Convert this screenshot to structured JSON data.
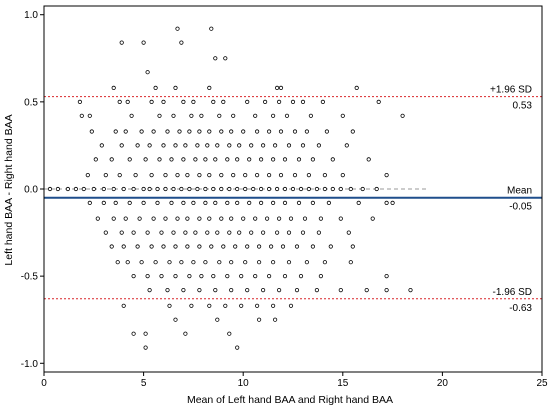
{
  "chart_data": {
    "type": "scatter",
    "title": "",
    "xlabel": "Mean of Left hand BAA and Right hand BAA",
    "ylabel": "Left hand BAA - Right hand BAA",
    "xlim": [
      0,
      25
    ],
    "ylim": [
      -1.05,
      1.05
    ],
    "x_ticks": [
      0,
      5,
      10,
      15,
      20,
      25
    ],
    "y_ticks": [
      -1.0,
      -0.5,
      0.0,
      0.5,
      1.0
    ],
    "x_tick_labels": [
      "0",
      "5",
      "10",
      "15",
      "20",
      "25"
    ],
    "y_tick_labels": [
      "-1.0",
      "-0.5",
      "0.0",
      "0.5",
      "1.0"
    ],
    "grid": false,
    "reference_lines": [
      {
        "name": "upper-loa",
        "y": 0.53,
        "label_top": "+1.96 SD",
        "label_bottom": "0.53",
        "style": "dotted",
        "color": "#d9252a"
      },
      {
        "name": "mean",
        "y": -0.05,
        "label_top": "Mean",
        "label_bottom": "-0.05",
        "style": "solid",
        "color": "#1f4e8c"
      },
      {
        "name": "lower-loa",
        "y": -0.63,
        "label_top": "-1.96 SD",
        "label_bottom": "-0.63",
        "style": "dotted",
        "color": "#d9252a"
      },
      {
        "name": "zero",
        "y": 0.0,
        "label_top": "",
        "label_bottom": "",
        "style": "dashed",
        "color": "#777777"
      }
    ],
    "points": [
      [
        6.7,
        0.92
      ],
      [
        8.4,
        0.92
      ],
      [
        3.9,
        0.84
      ],
      [
        5.0,
        0.84
      ],
      [
        6.9,
        0.84
      ],
      [
        8.6,
        0.75
      ],
      [
        9.1,
        0.75
      ],
      [
        5.2,
        0.67
      ],
      [
        3.5,
        0.58
      ],
      [
        5.6,
        0.58
      ],
      [
        6.6,
        0.58
      ],
      [
        8.3,
        0.58
      ],
      [
        11.7,
        0.58
      ],
      [
        11.9,
        0.58
      ],
      [
        15.7,
        0.58
      ],
      [
        1.8,
        0.5
      ],
      [
        3.8,
        0.5
      ],
      [
        4.2,
        0.5
      ],
      [
        5.4,
        0.5
      ],
      [
        6.0,
        0.5
      ],
      [
        7.0,
        0.5
      ],
      [
        7.5,
        0.5
      ],
      [
        8.5,
        0.5
      ],
      [
        9.0,
        0.5
      ],
      [
        10.2,
        0.5
      ],
      [
        11.1,
        0.5
      ],
      [
        11.8,
        0.5
      ],
      [
        12.5,
        0.5
      ],
      [
        13.0,
        0.5
      ],
      [
        14.0,
        0.5
      ],
      [
        16.8,
        0.5
      ],
      [
        1.9,
        0.42
      ],
      [
        2.3,
        0.42
      ],
      [
        4.4,
        0.42
      ],
      [
        5.8,
        0.42
      ],
      [
        6.5,
        0.42
      ],
      [
        7.4,
        0.42
      ],
      [
        7.9,
        0.42
      ],
      [
        8.8,
        0.42
      ],
      [
        9.5,
        0.42
      ],
      [
        10.6,
        0.42
      ],
      [
        11.5,
        0.42
      ],
      [
        12.2,
        0.42
      ],
      [
        13.4,
        0.42
      ],
      [
        15.0,
        0.42
      ],
      [
        18.0,
        0.42
      ],
      [
        2.4,
        0.33
      ],
      [
        3.6,
        0.33
      ],
      [
        4.1,
        0.33
      ],
      [
        4.9,
        0.33
      ],
      [
        5.5,
        0.33
      ],
      [
        6.2,
        0.33
      ],
      [
        6.8,
        0.33
      ],
      [
        7.3,
        0.33
      ],
      [
        7.8,
        0.33
      ],
      [
        8.3,
        0.33
      ],
      [
        8.9,
        0.33
      ],
      [
        9.4,
        0.33
      ],
      [
        10.0,
        0.33
      ],
      [
        10.7,
        0.33
      ],
      [
        11.3,
        0.33
      ],
      [
        11.9,
        0.33
      ],
      [
        12.6,
        0.33
      ],
      [
        13.2,
        0.33
      ],
      [
        14.2,
        0.33
      ],
      [
        15.5,
        0.33
      ],
      [
        2.9,
        0.25
      ],
      [
        3.9,
        0.25
      ],
      [
        4.7,
        0.25
      ],
      [
        5.3,
        0.25
      ],
      [
        6.0,
        0.25
      ],
      [
        6.6,
        0.25
      ],
      [
        7.1,
        0.25
      ],
      [
        7.7,
        0.25
      ],
      [
        8.2,
        0.25
      ],
      [
        8.7,
        0.25
      ],
      [
        9.3,
        0.25
      ],
      [
        9.8,
        0.25
      ],
      [
        10.4,
        0.25
      ],
      [
        11.0,
        0.25
      ],
      [
        11.6,
        0.25
      ],
      [
        12.3,
        0.25
      ],
      [
        13.0,
        0.25
      ],
      [
        13.8,
        0.25
      ],
      [
        15.2,
        0.25
      ],
      [
        2.6,
        0.17
      ],
      [
        3.4,
        0.17
      ],
      [
        4.3,
        0.17
      ],
      [
        5.1,
        0.17
      ],
      [
        5.8,
        0.17
      ],
      [
        6.4,
        0.17
      ],
      [
        7.0,
        0.17
      ],
      [
        7.6,
        0.17
      ],
      [
        8.1,
        0.17
      ],
      [
        8.6,
        0.17
      ],
      [
        9.2,
        0.17
      ],
      [
        9.7,
        0.17
      ],
      [
        10.3,
        0.17
      ],
      [
        10.9,
        0.17
      ],
      [
        11.5,
        0.17
      ],
      [
        12.1,
        0.17
      ],
      [
        12.8,
        0.17
      ],
      [
        13.5,
        0.17
      ],
      [
        14.5,
        0.17
      ],
      [
        16.3,
        0.17
      ],
      [
        2.2,
        0.08
      ],
      [
        3.1,
        0.08
      ],
      [
        3.8,
        0.08
      ],
      [
        4.6,
        0.08
      ],
      [
        5.4,
        0.08
      ],
      [
        6.1,
        0.08
      ],
      [
        6.7,
        0.08
      ],
      [
        7.2,
        0.08
      ],
      [
        7.8,
        0.08
      ],
      [
        8.3,
        0.08
      ],
      [
        8.9,
        0.08
      ],
      [
        9.5,
        0.08
      ],
      [
        10.1,
        0.08
      ],
      [
        10.7,
        0.08
      ],
      [
        11.3,
        0.08
      ],
      [
        11.9,
        0.08
      ],
      [
        12.6,
        0.08
      ],
      [
        13.3,
        0.08
      ],
      [
        14.1,
        0.08
      ],
      [
        15.0,
        0.08
      ],
      [
        17.2,
        0.08
      ],
      [
        0.3,
        0.0
      ],
      [
        0.7,
        0.0
      ],
      [
        1.2,
        0.0
      ],
      [
        1.6,
        0.0
      ],
      [
        2.0,
        0.0
      ],
      [
        2.5,
        0.0
      ],
      [
        3.0,
        0.0
      ],
      [
        3.5,
        0.0
      ],
      [
        4.0,
        0.0
      ],
      [
        4.5,
        0.0
      ],
      [
        5.0,
        0.0
      ],
      [
        5.3,
        0.0
      ],
      [
        5.7,
        0.0
      ],
      [
        6.1,
        0.0
      ],
      [
        6.5,
        0.0
      ],
      [
        6.9,
        0.0
      ],
      [
        7.3,
        0.0
      ],
      [
        7.7,
        0.0
      ],
      [
        8.1,
        0.0
      ],
      [
        8.5,
        0.0
      ],
      [
        8.9,
        0.0
      ],
      [
        9.3,
        0.0
      ],
      [
        9.7,
        0.0
      ],
      [
        10.1,
        0.0
      ],
      [
        10.5,
        0.0
      ],
      [
        10.9,
        0.0
      ],
      [
        11.3,
        0.0
      ],
      [
        11.7,
        0.0
      ],
      [
        12.1,
        0.0
      ],
      [
        12.5,
        0.0
      ],
      [
        12.9,
        0.0
      ],
      [
        13.3,
        0.0
      ],
      [
        13.7,
        0.0
      ],
      [
        14.1,
        0.0
      ],
      [
        14.5,
        0.0
      ],
      [
        14.9,
        0.0
      ],
      [
        15.4,
        0.0
      ],
      [
        16.0,
        0.0
      ],
      [
        16.7,
        0.0
      ],
      [
        2.3,
        -0.08
      ],
      [
        3.0,
        -0.08
      ],
      [
        3.6,
        -0.08
      ],
      [
        4.3,
        -0.08
      ],
      [
        5.0,
        -0.08
      ],
      [
        5.7,
        -0.08
      ],
      [
        6.4,
        -0.08
      ],
      [
        7.0,
        -0.08
      ],
      [
        7.5,
        -0.08
      ],
      [
        8.1,
        -0.08
      ],
      [
        8.6,
        -0.08
      ],
      [
        9.2,
        -0.08
      ],
      [
        9.7,
        -0.08
      ],
      [
        10.3,
        -0.08
      ],
      [
        10.9,
        -0.08
      ],
      [
        11.5,
        -0.08
      ],
      [
        12.1,
        -0.08
      ],
      [
        12.8,
        -0.08
      ],
      [
        13.5,
        -0.08
      ],
      [
        14.3,
        -0.08
      ],
      [
        15.8,
        -0.08
      ],
      [
        17.2,
        -0.08
      ],
      [
        17.5,
        -0.08
      ],
      [
        2.7,
        -0.17
      ],
      [
        3.5,
        -0.17
      ],
      [
        4.1,
        -0.17
      ],
      [
        4.8,
        -0.17
      ],
      [
        5.5,
        -0.17
      ],
      [
        6.1,
        -0.17
      ],
      [
        6.7,
        -0.17
      ],
      [
        7.2,
        -0.17
      ],
      [
        7.8,
        -0.17
      ],
      [
        8.3,
        -0.17
      ],
      [
        8.9,
        -0.17
      ],
      [
        9.4,
        -0.17
      ],
      [
        10.0,
        -0.17
      ],
      [
        10.6,
        -0.17
      ],
      [
        11.2,
        -0.17
      ],
      [
        11.8,
        -0.17
      ],
      [
        12.4,
        -0.17
      ],
      [
        13.1,
        -0.17
      ],
      [
        13.9,
        -0.17
      ],
      [
        14.9,
        -0.17
      ],
      [
        16.5,
        -0.17
      ],
      [
        3.1,
        -0.25
      ],
      [
        3.9,
        -0.25
      ],
      [
        4.5,
        -0.25
      ],
      [
        5.2,
        -0.25
      ],
      [
        5.9,
        -0.25
      ],
      [
        6.5,
        -0.25
      ],
      [
        7.1,
        -0.25
      ],
      [
        7.6,
        -0.25
      ],
      [
        8.2,
        -0.25
      ],
      [
        8.7,
        -0.25
      ],
      [
        9.3,
        -0.25
      ],
      [
        9.8,
        -0.25
      ],
      [
        10.4,
        -0.25
      ],
      [
        11.0,
        -0.25
      ],
      [
        11.7,
        -0.25
      ],
      [
        12.3,
        -0.25
      ],
      [
        13.0,
        -0.25
      ],
      [
        13.8,
        -0.25
      ],
      [
        15.3,
        -0.25
      ],
      [
        3.4,
        -0.33
      ],
      [
        4.0,
        -0.33
      ],
      [
        4.7,
        -0.33
      ],
      [
        5.4,
        -0.33
      ],
      [
        6.0,
        -0.33
      ],
      [
        6.6,
        -0.33
      ],
      [
        7.2,
        -0.33
      ],
      [
        7.8,
        -0.33
      ],
      [
        8.4,
        -0.33
      ],
      [
        9.0,
        -0.33
      ],
      [
        9.6,
        -0.33
      ],
      [
        10.2,
        -0.33
      ],
      [
        10.8,
        -0.33
      ],
      [
        11.4,
        -0.33
      ],
      [
        12.0,
        -0.33
      ],
      [
        12.7,
        -0.33
      ],
      [
        13.5,
        -0.33
      ],
      [
        14.4,
        -0.33
      ],
      [
        15.5,
        -0.33
      ],
      [
        3.7,
        -0.42
      ],
      [
        4.2,
        -0.42
      ],
      [
        4.9,
        -0.42
      ],
      [
        5.6,
        -0.42
      ],
      [
        6.3,
        -0.42
      ],
      [
        6.9,
        -0.42
      ],
      [
        7.5,
        -0.42
      ],
      [
        8.1,
        -0.42
      ],
      [
        8.8,
        -0.42
      ],
      [
        9.4,
        -0.42
      ],
      [
        10.1,
        -0.42
      ],
      [
        10.8,
        -0.42
      ],
      [
        11.5,
        -0.42
      ],
      [
        12.3,
        -0.42
      ],
      [
        13.2,
        -0.42
      ],
      [
        14.1,
        -0.42
      ],
      [
        15.4,
        -0.42
      ],
      [
        4.5,
        -0.5
      ],
      [
        5.2,
        -0.5
      ],
      [
        5.9,
        -0.5
      ],
      [
        6.6,
        -0.5
      ],
      [
        7.3,
        -0.5
      ],
      [
        7.9,
        -0.5
      ],
      [
        8.5,
        -0.5
      ],
      [
        9.2,
        -0.5
      ],
      [
        9.9,
        -0.5
      ],
      [
        10.6,
        -0.5
      ],
      [
        11.3,
        -0.5
      ],
      [
        12.1,
        -0.5
      ],
      [
        12.9,
        -0.5
      ],
      [
        13.9,
        -0.5
      ],
      [
        17.2,
        -0.5
      ],
      [
        5.3,
        -0.58
      ],
      [
        6.2,
        -0.58
      ],
      [
        7.0,
        -0.58
      ],
      [
        7.8,
        -0.58
      ],
      [
        8.6,
        -0.58
      ],
      [
        9.4,
        -0.58
      ],
      [
        10.2,
        -0.58
      ],
      [
        11.0,
        -0.58
      ],
      [
        11.8,
        -0.58
      ],
      [
        12.7,
        -0.58
      ],
      [
        13.7,
        -0.58
      ],
      [
        14.9,
        -0.58
      ],
      [
        16.2,
        -0.58
      ],
      [
        17.2,
        -0.58
      ],
      [
        18.4,
        -0.58
      ],
      [
        4.0,
        -0.67
      ],
      [
        6.3,
        -0.67
      ],
      [
        7.4,
        -0.67
      ],
      [
        8.3,
        -0.67
      ],
      [
        9.1,
        -0.67
      ],
      [
        9.9,
        -0.67
      ],
      [
        10.7,
        -0.67
      ],
      [
        11.5,
        -0.67
      ],
      [
        12.4,
        -0.67
      ],
      [
        6.6,
        -0.75
      ],
      [
        8.7,
        -0.75
      ],
      [
        10.8,
        -0.75
      ],
      [
        11.6,
        -0.75
      ],
      [
        4.5,
        -0.83
      ],
      [
        5.1,
        -0.83
      ],
      [
        7.1,
        -0.83
      ],
      [
        9.3,
        -0.83
      ],
      [
        5.1,
        -0.91
      ],
      [
        9.7,
        -0.91
      ]
    ]
  }
}
